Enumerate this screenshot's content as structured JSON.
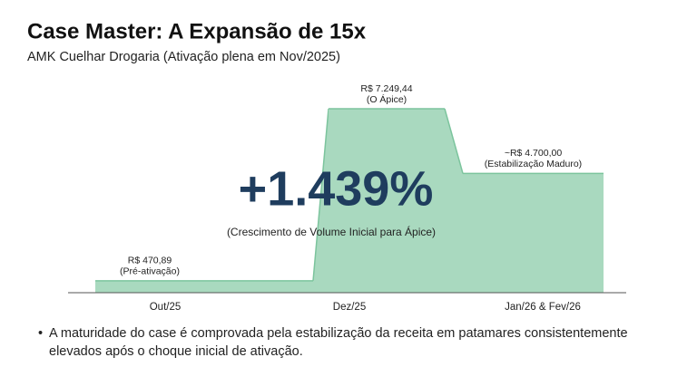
{
  "chart_data": {
    "type": "area",
    "title": "Case Master: A Expansão de 15x",
    "subtitle": "AMK Cuelhar Drogaria (Ativação plena em Nov/2025)",
    "categories": [
      "Out/25",
      "Dez/25",
      "Jan/26 & Fev/26"
    ],
    "values": [
      470.89,
      7249.44,
      4700
    ],
    "value_labels": [
      "R$ 470,89",
      "R$ 7.249,44",
      "~R$ 4.700,00"
    ],
    "annotations": [
      "(Pré-ativação)",
      "(O Ápice)",
      "(Estabilização Maduro)"
    ],
    "headline": "+1.439%",
    "headline_caption": "(Crescimento de Volume Inicial para Ápice)",
    "color": "#a9d9bf",
    "bullets": [
      "A maturidade do case é comprovada pela estabilização da receita em patamares consistentemente elevados após o choque inicial de ativação."
    ]
  }
}
